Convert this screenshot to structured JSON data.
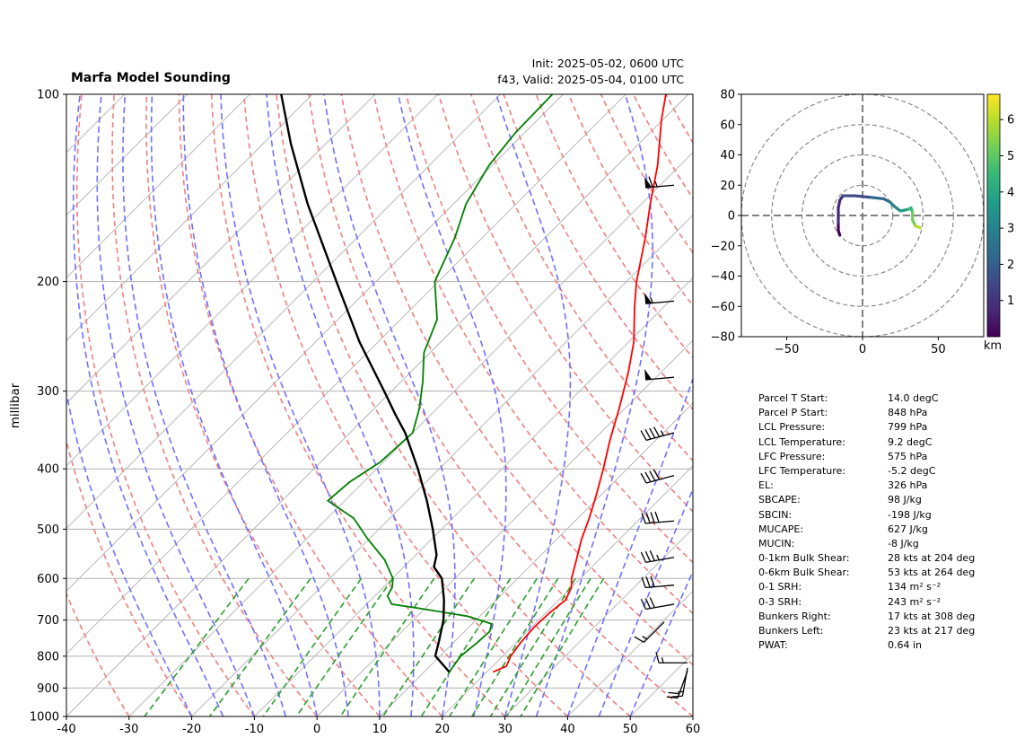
{
  "header": {
    "title": "Marfa Model Sounding",
    "init": "Init: 2025-05-02, 0600 UTC",
    "valid": "f43, Valid: 2025-05-04, 0100 UTC"
  },
  "chart_data": [
    {
      "type": "line",
      "name": "skew-t",
      "ylabel": "millibar",
      "xlabel": "",
      "xlim": [
        -40,
        60
      ],
      "ylim": [
        1000,
        100
      ],
      "y_log_scale": true,
      "x_ticks": [
        -40,
        -30,
        -20,
        -10,
        0,
        10,
        20,
        30,
        40,
        50,
        60
      ],
      "y_ticks": [
        1000,
        900,
        800,
        700,
        600,
        500,
        400,
        300,
        200,
        100
      ],
      "grid": true,
      "colors": {
        "temperature": "#ff0000",
        "dewpoint": "#008000",
        "parcel": "#000000",
        "dry_adiabats": "#f08080",
        "moist_adiabats": "#7070ff",
        "mixing_ratio": "#2ca02c",
        "isotherms": "#c0c0c0"
      },
      "series": [
        {
          "key": "temperature",
          "points": [
            [
              848,
              21.0
            ],
            [
              830,
              22.2
            ],
            [
              800,
              21.3
            ],
            [
              760,
              20.7
            ],
            [
              720,
              20.4
            ],
            [
              680,
              20.6
            ],
            [
              650,
              21.1
            ],
            [
              620,
              20.0
            ],
            [
              600,
              18.6
            ],
            [
              560,
              16.4
            ],
            [
              520,
              14.0
            ],
            [
              480,
              11.8
            ],
            [
              440,
              9.2
            ],
            [
              400,
              6.2
            ],
            [
              360,
              2.7
            ],
            [
              320,
              -0.9
            ],
            [
              280,
              -5.2
            ],
            [
              250,
              -9.2
            ],
            [
              220,
              -14.6
            ],
            [
              200,
              -18.4
            ],
            [
              170,
              -24.0
            ],
            [
              150,
              -28.6
            ],
            [
              130,
              -33.6
            ],
            [
              110,
              -40.2
            ],
            [
              100,
              -43.6
            ]
          ]
        },
        {
          "key": "dewpoint",
          "points": [
            [
              848,
              14.0
            ],
            [
              800,
              13.3
            ],
            [
              760,
              13.8
            ],
            [
              730,
              14.0
            ],
            [
              710,
              13.1
            ],
            [
              690,
              8.0
            ],
            [
              670,
              -1.0
            ],
            [
              660,
              -6.0
            ],
            [
              640,
              -8.0
            ],
            [
              620,
              -8.6
            ],
            [
              600,
              -9.9
            ],
            [
              560,
              -14.2
            ],
            [
              520,
              -20.0
            ],
            [
              480,
              -25.8
            ],
            [
              450,
              -32.7
            ],
            [
              420,
              -32.2
            ],
            [
              390,
              -30.5
            ],
            [
              350,
              -30.0
            ],
            [
              320,
              -32.8
            ],
            [
              290,
              -36.5
            ],
            [
              260,
              -41.0
            ],
            [
              230,
              -44.2
            ],
            [
              200,
              -50.6
            ],
            [
              170,
              -54.4
            ],
            [
              150,
              -58.0
            ],
            [
              130,
              -60.5
            ],
            [
              115,
              -61.5
            ],
            [
              100,
              -61.7
            ]
          ]
        },
        {
          "key": "parcel",
          "points": [
            [
              848,
              14.0
            ],
            [
              799,
              9.2
            ],
            [
              760,
              7.6
            ],
            [
              700,
              4.8
            ],
            [
              650,
              1.7
            ],
            [
              600,
              -2.1
            ],
            [
              575,
              -5.2
            ],
            [
              550,
              -6.7
            ],
            [
              500,
              -11.4
            ],
            [
              450,
              -16.9
            ],
            [
              400,
              -23.4
            ],
            [
              350,
              -31.2
            ],
            [
              326,
              -35.9
            ],
            [
              300,
              -41.2
            ],
            [
              250,
              -53.0
            ],
            [
              200,
              -66.3
            ],
            [
              150,
              -83.3
            ],
            [
              120,
              -95.6
            ],
            [
              100,
              -105.0
            ]
          ]
        }
      ],
      "wind_barbs": [
        {
          "p": 140,
          "speed": 65,
          "dir": 265
        },
        {
          "p": 215,
          "speed": 55,
          "dir": 265
        },
        {
          "p": 285,
          "speed": 50,
          "dir": 265
        },
        {
          "p": 350,
          "speed": 45,
          "dir": 255
        },
        {
          "p": 410,
          "speed": 40,
          "dir": 255
        },
        {
          "p": 485,
          "speed": 40,
          "dir": 265
        },
        {
          "p": 555,
          "speed": 35,
          "dir": 260
        },
        {
          "p": 615,
          "speed": 30,
          "dir": 265
        },
        {
          "p": 660,
          "speed": 30,
          "dir": 260
        },
        {
          "p": 705,
          "speed": 15,
          "dir": 225
        },
        {
          "p": 820,
          "speed": 15,
          "dir": 270
        },
        {
          "p": 835,
          "speed": 15,
          "dir": 190
        },
        {
          "p": 845,
          "speed": 20,
          "dir": 200
        }
      ]
    },
    {
      "type": "line",
      "name": "hodograph",
      "xlim": [
        -80,
        80
      ],
      "ylim": [
        -80,
        80
      ],
      "x_ticks": [
        -50,
        0,
        50
      ],
      "y_ticks": [
        -80,
        -60,
        -40,
        -20,
        0,
        20,
        40,
        60,
        80
      ],
      "ring_speeds": [
        20,
        40,
        60,
        80
      ],
      "colorbar": {
        "min": 0,
        "max": 6.7,
        "ticks": [
          1,
          2,
          3,
          4,
          5,
          6
        ],
        "label": "km",
        "colormap": "viridis"
      },
      "points": [
        [
          -15,
          -13,
          0.0
        ],
        [
          -16,
          -10,
          0.2
        ],
        [
          -16,
          -5,
          0.4
        ],
        [
          -16,
          0,
          0.6
        ],
        [
          -16,
          5,
          0.8
        ],
        [
          -15,
          10,
          1.0
        ],
        [
          -13,
          13,
          1.2
        ],
        [
          -5,
          13,
          1.6
        ],
        [
          5,
          12,
          2.0
        ],
        [
          14,
          11,
          2.4
        ],
        [
          18,
          9,
          2.8
        ],
        [
          21,
          6,
          3.2
        ],
        [
          25,
          3,
          3.6
        ],
        [
          30,
          4,
          4.2
        ],
        [
          32,
          5,
          4.6
        ],
        [
          33,
          2,
          5.0
        ],
        [
          33,
          -3,
          5.5
        ],
        [
          35,
          -7,
          6.0
        ],
        [
          38,
          -8,
          6.6
        ]
      ]
    }
  ],
  "params": [
    {
      "label": "Parcel T Start:",
      "value": "14.0 degC"
    },
    {
      "label": "Parcel P Start:",
      "value": "848 hPa"
    },
    {
      "label": "LCL Pressure:",
      "value": "799 hPa"
    },
    {
      "label": "LCL Temperature:",
      "value": "9.2 degC"
    },
    {
      "label": "LFC Pressure:",
      "value": "575 hPa"
    },
    {
      "label": "LFC Temperature:",
      "value": "-5.2 degC"
    },
    {
      "label": "EL:",
      "value": "326 hPa"
    },
    {
      "label": "SBCAPE:",
      "value": "98 J/kg"
    },
    {
      "label": "SBCIN:",
      "value": "-198 J/kg"
    },
    {
      "label": "MUCAPE:",
      "value": "627 J/kg"
    },
    {
      "label": "MUCIN:",
      "value": "-8 J/kg"
    },
    {
      "label": "0-1km Bulk Shear:",
      "value": "28 kts at 204 deg"
    },
    {
      "label": "0-6km Bulk Shear:",
      "value": "53 kts at 264 deg"
    },
    {
      "label": "0-1 SRH:",
      "value": "134 m² s⁻²"
    },
    {
      "label": "0-3 SRH:",
      "value": "243 m² s⁻²"
    },
    {
      "label": "Bunkers Right:",
      "value": "17 kts at 308 deg"
    },
    {
      "label": "Bunkers Left:",
      "value": "23 kts at 217 deg"
    },
    {
      "label": "PWAT:",
      "value": "0.64 in"
    }
  ]
}
